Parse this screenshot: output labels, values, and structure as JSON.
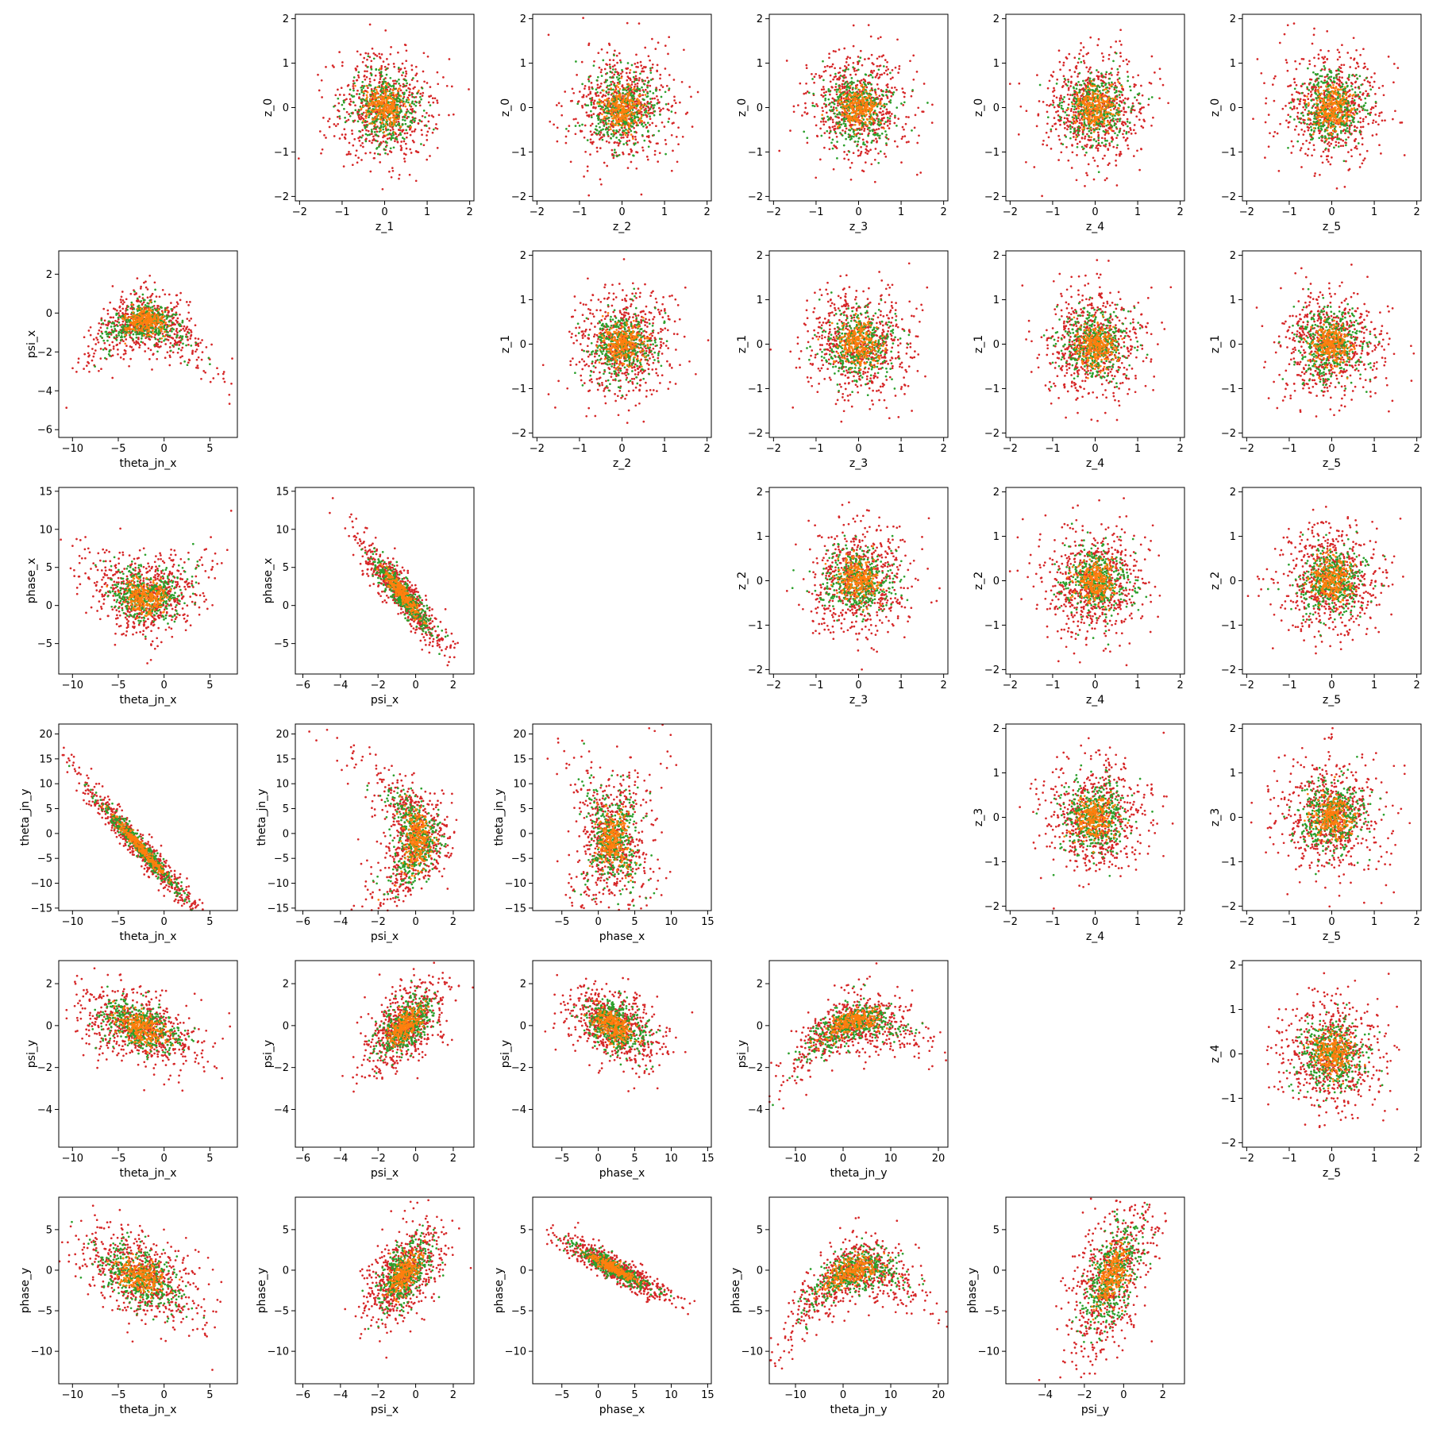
{
  "figure": {
    "rows": [
      "z_0",
      "z_1",
      "z_2",
      "z_3",
      "z_4",
      "psi_x",
      "phase_x",
      "theta_jn_y",
      "psi_y",
      "phase_y"
    ],
    "series_colors": [
      "#d62728",
      "#2ca02c",
      "#ff7f0e"
    ]
  },
  "chart_data": [
    {
      "type": "scatter",
      "row": 0,
      "col": 1,
      "xlabel": "z_1",
      "ylabel": "z_0",
      "xlim": [
        -2.1,
        2.1
      ],
      "ylim": [
        -2.1,
        2.1
      ],
      "xticks": [
        -2,
        -1,
        0,
        1,
        2
      ],
      "yticks": [
        -2,
        -1,
        0,
        1,
        2
      ],
      "pattern": "iso"
    },
    {
      "type": "scatter",
      "row": 0,
      "col": 2,
      "xlabel": "z_2",
      "ylabel": "z_0",
      "xlim": [
        -2.1,
        2.1
      ],
      "ylim": [
        -2.1,
        2.1
      ],
      "xticks": [
        -2,
        -1,
        0,
        1,
        2
      ],
      "yticks": [
        -2,
        -1,
        0,
        1,
        2
      ],
      "pattern": "iso"
    },
    {
      "type": "scatter",
      "row": 0,
      "col": 3,
      "xlabel": "z_3",
      "ylabel": "z_0",
      "xlim": [
        -2.1,
        2.1
      ],
      "ylim": [
        -2.1,
        2.1
      ],
      "xticks": [
        -2,
        -1,
        0,
        1,
        2
      ],
      "yticks": [
        -2,
        -1,
        0,
        1,
        2
      ],
      "pattern": "iso"
    },
    {
      "type": "scatter",
      "row": 0,
      "col": 4,
      "xlabel": "z_4",
      "ylabel": "z_0",
      "xlim": [
        -2.1,
        2.1
      ],
      "ylim": [
        -2.1,
        2.1
      ],
      "xticks": [
        -2,
        -1,
        0,
        1,
        2
      ],
      "yticks": [
        -2,
        -1,
        0,
        1,
        2
      ],
      "pattern": "iso"
    },
    {
      "type": "scatter",
      "row": 0,
      "col": 5,
      "xlabel": "z_5",
      "ylabel": "z_0",
      "xlim": [
        -2.1,
        2.1
      ],
      "ylim": [
        -2.1,
        2.1
      ],
      "xticks": [
        -2,
        -1,
        0,
        1,
        2
      ],
      "yticks": [
        -2,
        -1,
        0,
        1,
        2
      ],
      "pattern": "iso"
    },
    {
      "type": "scatter",
      "row": 1,
      "col": 0,
      "xlabel": "theta_jn_x",
      "ylabel": "psi_x",
      "xlim": [
        -11.5,
        8
      ],
      "ylim": [
        -6.4,
        3.2
      ],
      "xticks": [
        -10,
        -5,
        0,
        5
      ],
      "yticks": [
        -6,
        -4,
        -2,
        0,
        2
      ],
      "pattern": "arch"
    },
    {
      "type": "scatter",
      "row": 1,
      "col": 2,
      "xlabel": "z_2",
      "ylabel": "z_1",
      "xlim": [
        -2.1,
        2.1
      ],
      "ylim": [
        -2.1,
        2.1
      ],
      "xticks": [
        -2,
        -1,
        0,
        1,
        2
      ],
      "yticks": [
        -2,
        -1,
        0,
        1,
        2
      ],
      "pattern": "iso"
    },
    {
      "type": "scatter",
      "row": 1,
      "col": 3,
      "xlabel": "z_3",
      "ylabel": "z_1",
      "xlim": [
        -2.1,
        2.1
      ],
      "ylim": [
        -2.1,
        2.1
      ],
      "xticks": [
        -2,
        -1,
        0,
        1,
        2
      ],
      "yticks": [
        -2,
        -1,
        0,
        1,
        2
      ],
      "pattern": "iso"
    },
    {
      "type": "scatter",
      "row": 1,
      "col": 4,
      "xlabel": "z_4",
      "ylabel": "z_1",
      "xlim": [
        -2.1,
        2.1
      ],
      "ylim": [
        -2.1,
        2.1
      ],
      "xticks": [
        -2,
        -1,
        0,
        1,
        2
      ],
      "yticks": [
        -2,
        -1,
        0,
        1,
        2
      ],
      "pattern": "iso"
    },
    {
      "type": "scatter",
      "row": 1,
      "col": 5,
      "xlabel": "z_5",
      "ylabel": "z_1",
      "xlim": [
        -2.1,
        2.1
      ],
      "ylim": [
        -2.1,
        2.1
      ],
      "xticks": [
        -2,
        -1,
        0,
        1,
        2
      ],
      "yticks": [
        -2,
        -1,
        0,
        1,
        2
      ],
      "pattern": "iso"
    },
    {
      "type": "scatter",
      "row": 2,
      "col": 0,
      "xlabel": "theta_jn_x",
      "ylabel": "phase_x",
      "xlim": [
        -11.5,
        8
      ],
      "ylim": [
        -9,
        15.5
      ],
      "xticks": [
        -10,
        -5,
        0,
        5
      ],
      "yticks": [
        -5,
        0,
        5,
        10,
        15
      ],
      "pattern": "uvalley"
    },
    {
      "type": "scatter",
      "row": 2,
      "col": 1,
      "xlabel": "psi_x",
      "ylabel": "phase_x",
      "xlim": [
        -6.4,
        3.1
      ],
      "ylim": [
        -9,
        15.5
      ],
      "xticks": [
        -6,
        -4,
        -2,
        0,
        2
      ],
      "yticks": [
        -5,
        0,
        5,
        10,
        15
      ],
      "pattern": "negcorr"
    },
    {
      "type": "scatter",
      "row": 2,
      "col": 3,
      "xlabel": "z_3",
      "ylabel": "z_2",
      "xlim": [
        -2.1,
        2.1
      ],
      "ylim": [
        -2.1,
        2.1
      ],
      "xticks": [
        -2,
        -1,
        0,
        1,
        2
      ],
      "yticks": [
        -2,
        -1,
        0,
        1,
        2
      ],
      "pattern": "iso"
    },
    {
      "type": "scatter",
      "row": 2,
      "col": 4,
      "xlabel": "z_4",
      "ylabel": "z_2",
      "xlim": [
        -2.1,
        2.1
      ],
      "ylim": [
        -2.1,
        2.1
      ],
      "xticks": [
        -2,
        -1,
        0,
        1,
        2
      ],
      "yticks": [
        -2,
        -1,
        0,
        1,
        2
      ],
      "pattern": "iso"
    },
    {
      "type": "scatter",
      "row": 2,
      "col": 5,
      "xlabel": "z_5",
      "ylabel": "z_2",
      "xlim": [
        -2.1,
        2.1
      ],
      "ylim": [
        -2.1,
        2.1
      ],
      "xticks": [
        -2,
        -1,
        0,
        1,
        2
      ],
      "yticks": [
        -2,
        -1,
        0,
        1,
        2
      ],
      "pattern": "iso"
    },
    {
      "type": "scatter",
      "row": 3,
      "col": 0,
      "xlabel": "theta_jn_x",
      "ylabel": "theta_jn_y",
      "xlim": [
        -11.5,
        8
      ],
      "ylim": [
        -15.5,
        22
      ],
      "xticks": [
        -10,
        -5,
        0,
        5
      ],
      "yticks": [
        -15,
        -10,
        -5,
        0,
        5,
        10,
        15,
        20
      ],
      "pattern": "strongneg"
    },
    {
      "type": "scatter",
      "row": 3,
      "col": 1,
      "xlabel": "psi_x",
      "ylabel": "theta_jn_y",
      "xlim": [
        -6.4,
        3.1
      ],
      "ylim": [
        -15.5,
        22
      ],
      "xticks": [
        -6,
        -4,
        -2,
        0,
        2
      ],
      "yticks": [
        -15,
        -10,
        -5,
        0,
        5,
        10,
        15,
        20
      ],
      "pattern": "crescent"
    },
    {
      "type": "scatter",
      "row": 3,
      "col": 2,
      "xlabel": "phase_x",
      "ylabel": "theta_jn_y",
      "xlim": [
        -9,
        15.5
      ],
      "ylim": [
        -15.5,
        22
      ],
      "xticks": [
        -5,
        0,
        5,
        10,
        15
      ],
      "yticks": [
        -15,
        -10,
        -5,
        0,
        5,
        10,
        15,
        20
      ],
      "pattern": "xshape"
    },
    {
      "type": "scatter",
      "row": 3,
      "col": 4,
      "xlabel": "z_4",
      "ylabel": "z_3",
      "xlim": [
        -2.1,
        2.1
      ],
      "ylim": [
        -2.1,
        2.1
      ],
      "xticks": [
        -2,
        -1,
        0,
        1,
        2
      ],
      "yticks": [
        -2,
        -1,
        0,
        1,
        2
      ],
      "pattern": "iso"
    },
    {
      "type": "scatter",
      "row": 3,
      "col": 5,
      "xlabel": "z_5",
      "ylabel": "z_3",
      "xlim": [
        -2.1,
        2.1
      ],
      "ylim": [
        -2.1,
        2.1
      ],
      "xticks": [
        -2,
        -1,
        0,
        1,
        2
      ],
      "yticks": [
        -2,
        -1,
        0,
        1,
        2
      ],
      "pattern": "iso"
    },
    {
      "type": "scatter",
      "row": 4,
      "col": 0,
      "xlabel": "theta_jn_x",
      "ylabel": "psi_y",
      "xlim": [
        -11.5,
        8
      ],
      "ylim": [
        -5.8,
        3.1
      ],
      "xticks": [
        -10,
        -5,
        0,
        5
      ],
      "yticks": [
        -4,
        -2,
        0,
        2
      ],
      "pattern": "negcorr2"
    },
    {
      "type": "scatter",
      "row": 4,
      "col": 1,
      "xlabel": "psi_x",
      "ylabel": "psi_y",
      "xlim": [
        -6.4,
        3.1
      ],
      "ylim": [
        -5.8,
        3.1
      ],
      "xticks": [
        -6,
        -4,
        -2,
        0,
        2
      ],
      "yticks": [
        -4,
        -2,
        0,
        2
      ],
      "pattern": "poscorr"
    },
    {
      "type": "scatter",
      "row": 4,
      "col": 2,
      "xlabel": "phase_x",
      "ylabel": "psi_y",
      "xlim": [
        -9,
        15.5
      ],
      "ylim": [
        -5.8,
        3.1
      ],
      "xticks": [
        -5,
        0,
        5,
        10,
        15
      ],
      "yticks": [
        -4,
        -2,
        0,
        2
      ],
      "pattern": "negcorr3"
    },
    {
      "type": "scatter",
      "row": 4,
      "col": 3,
      "xlabel": "theta_jn_y",
      "ylabel": "psi_y",
      "xlim": [
        -15.5,
        22
      ],
      "ylim": [
        -5.8,
        3.1
      ],
      "xticks": [
        -10,
        0,
        10,
        20
      ],
      "yticks": [
        -4,
        -2,
        0,
        2
      ],
      "pattern": "concave"
    },
    {
      "type": "scatter",
      "row": 4,
      "col": 5,
      "xlabel": "z_5",
      "ylabel": "z_4",
      "xlim": [
        -2.1,
        2.1
      ],
      "ylim": [
        -2.1,
        2.1
      ],
      "xticks": [
        -2,
        -1,
        0,
        1,
        2
      ],
      "yticks": [
        -2,
        -1,
        0,
        1,
        2
      ],
      "pattern": "iso"
    },
    {
      "type": "scatter",
      "row": 5,
      "col": 0,
      "xlabel": "theta_jn_x",
      "ylabel": "phase_y",
      "xlim": [
        -11.5,
        8
      ],
      "ylim": [
        -14,
        9
      ],
      "xticks": [
        -10,
        -5,
        0,
        5
      ],
      "yticks": [
        -10,
        -5,
        0,
        5
      ],
      "pattern": "negcorr2"
    },
    {
      "type": "scatter",
      "row": 5,
      "col": 1,
      "xlabel": "psi_x",
      "ylabel": "phase_y",
      "xlim": [
        -6.4,
        3.1
      ],
      "ylim": [
        -14,
        9
      ],
      "xticks": [
        -6,
        -4,
        -2,
        0,
        2
      ],
      "yticks": [
        -10,
        -5,
        0,
        5
      ],
      "pattern": "poscorr"
    },
    {
      "type": "scatter",
      "row": 5,
      "col": 2,
      "xlabel": "phase_x",
      "ylabel": "phase_y",
      "xlim": [
        -9,
        15.5
      ],
      "ylim": [
        -14,
        9
      ],
      "xticks": [
        -5,
        0,
        5,
        10,
        15
      ],
      "yticks": [
        -10,
        -5,
        0,
        5
      ],
      "pattern": "negcorr"
    },
    {
      "type": "scatter",
      "row": 5,
      "col": 3,
      "xlabel": "theta_jn_y",
      "ylabel": "phase_y",
      "xlim": [
        -15.5,
        22
      ],
      "ylim": [
        -14,
        9
      ],
      "xticks": [
        -10,
        0,
        10,
        20
      ],
      "yticks": [
        -10,
        -5,
        0,
        5
      ],
      "pattern": "concave"
    },
    {
      "type": "scatter",
      "row": 5,
      "col": 4,
      "xlabel": "psi_y",
      "ylabel": "phase_y",
      "xlim": [
        -6,
        3.1
      ],
      "ylim": [
        -14,
        9
      ],
      "xticks": [
        -4,
        -2,
        0,
        2
      ],
      "yticks": [
        -10,
        -5,
        0,
        5
      ],
      "pattern": "poscorr"
    }
  ]
}
